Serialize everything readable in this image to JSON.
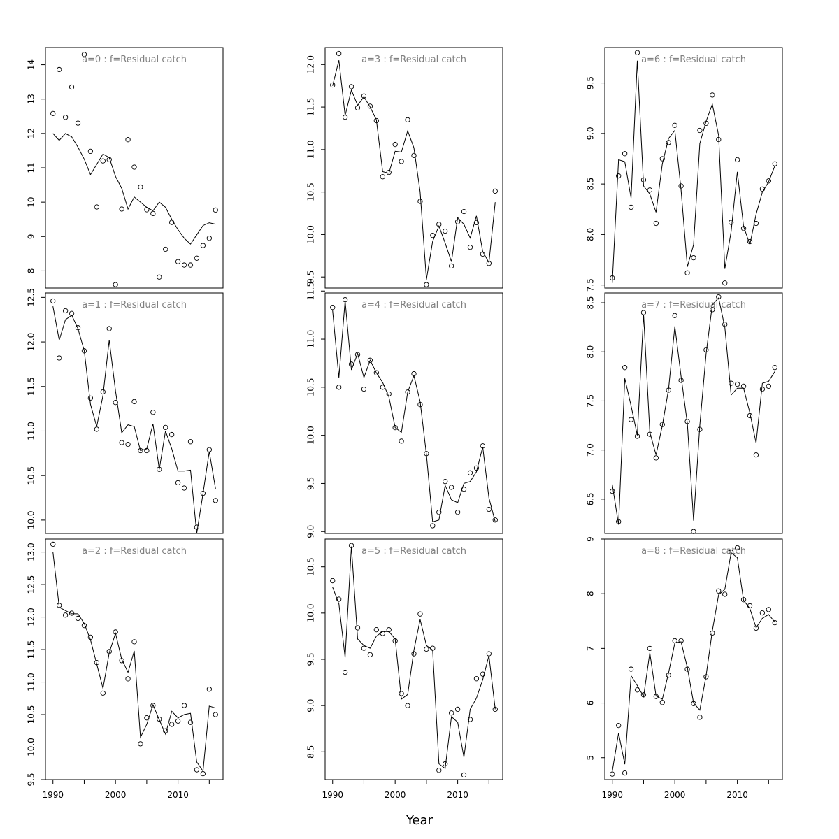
{
  "figure": {
    "xlabel": "Year"
  },
  "chart_data": [
    {
      "type": "scatter",
      "title": "a=0  :  f=Residual catch",
      "x": [
        1990,
        1991,
        1992,
        1993,
        1994,
        1995,
        1996,
        1997,
        1998,
        1999,
        2000,
        2001,
        2002,
        2003,
        2004,
        2005,
        2006,
        2007,
        2008,
        2009,
        2010,
        2011,
        2012,
        2013,
        2014,
        2015,
        2016
      ],
      "observed": [
        12.58,
        13.86,
        12.47,
        13.35,
        12.3,
        14.3,
        11.48,
        9.86,
        11.2,
        11.24,
        7.6,
        9.8,
        11.82,
        11.02,
        10.44,
        9.78,
        9.67,
        7.82,
        8.63,
        9.41,
        8.27,
        8.17,
        8.17,
        8.37,
        8.74,
        8.95,
        9.77
      ],
      "fitted": [
        12.0,
        11.8,
        12.0,
        11.9,
        11.6,
        11.25,
        10.8,
        11.1,
        11.4,
        11.3,
        10.75,
        10.4,
        9.8,
        10.15,
        10.0,
        9.85,
        9.75,
        10.0,
        9.85,
        9.5,
        9.2,
        8.95,
        8.78,
        9.05,
        9.32,
        9.4,
        9.36
      ],
      "yticks": [
        8,
        9,
        10,
        11,
        12,
        13,
        14
      ],
      "ylim": [
        7.5,
        14.5
      ],
      "xticks": [
        1990,
        2000,
        2010
      ]
    },
    {
      "type": "scatter",
      "title": "a=1  :  f=Residual catch",
      "x": [
        1990,
        1991,
        1992,
        1993,
        1994,
        1995,
        1996,
        1997,
        1998,
        1999,
        2000,
        2001,
        2002,
        2003,
        2004,
        2005,
        2006,
        2007,
        2008,
        2009,
        2010,
        2011,
        2012,
        2013,
        2014,
        2015,
        2016
      ],
      "observed": [
        12.46,
        11.82,
        12.35,
        12.32,
        12.16,
        11.9,
        11.37,
        11.02,
        11.44,
        12.15,
        11.32,
        10.87,
        10.85,
        11.33,
        10.78,
        10.78,
        11.21,
        10.57,
        11.04,
        10.96,
        10.42,
        10.36,
        10.88,
        9.92,
        10.3,
        10.79,
        10.22
      ],
      "fitted": [
        12.4,
        12.02,
        12.25,
        12.3,
        12.15,
        11.9,
        11.3,
        11.05,
        11.4,
        12.02,
        11.45,
        10.98,
        11.07,
        11.05,
        10.78,
        10.8,
        11.08,
        10.57,
        11.0,
        10.8,
        10.55,
        10.55,
        10.56,
        9.85,
        10.3,
        10.77,
        10.35
      ],
      "yticks": [
        10.0,
        10.5,
        11.0,
        11.5,
        12.0,
        12.5
      ],
      "ylim": [
        9.85,
        12.55
      ],
      "xticks": [
        1990,
        2000,
        2010
      ]
    },
    {
      "type": "scatter",
      "title": "a=2  :  f=Residual catch",
      "x": [
        1990,
        1991,
        1992,
        1993,
        1994,
        1995,
        1996,
        1997,
        1998,
        1999,
        2000,
        2001,
        2002,
        2003,
        2004,
        2005,
        2006,
        2007,
        2008,
        2009,
        2010,
        2011,
        2012,
        2013,
        2014,
        2015,
        2016
      ],
      "observed": [
        13.12,
        12.18,
        12.03,
        12.06,
        11.98,
        11.87,
        11.69,
        11.3,
        10.83,
        11.47,
        11.77,
        11.33,
        11.05,
        11.62,
        10.05,
        10.45,
        10.64,
        10.43,
        10.25,
        10.35,
        10.4,
        10.64,
        10.38,
        9.65,
        9.59,
        10.89,
        10.5
      ],
      "fitted": [
        13.0,
        12.15,
        12.1,
        12.05,
        12.05,
        11.9,
        11.65,
        11.28,
        10.9,
        11.45,
        11.75,
        11.35,
        11.15,
        11.48,
        10.15,
        10.35,
        10.65,
        10.42,
        10.2,
        10.55,
        10.45,
        10.5,
        10.52,
        9.77,
        9.63,
        10.63,
        10.6
      ],
      "yticks": [
        9.5,
        10.0,
        10.5,
        11.0,
        11.5,
        12.0,
        12.5,
        13.0
      ],
      "ylim": [
        9.5,
        13.2
      ],
      "xticks": [
        1990,
        2000,
        2010
      ]
    },
    {
      "type": "scatter",
      "title": "a=3  :  f=Residual catch",
      "x": [
        1990,
        1991,
        1992,
        1993,
        1994,
        1995,
        1996,
        1997,
        1998,
        1999,
        2000,
        2001,
        2002,
        2003,
        2004,
        2005,
        2006,
        2007,
        2008,
        2009,
        2010,
        2011,
        2012,
        2013,
        2014,
        2015,
        2016
      ],
      "observed": [
        11.76,
        12.13,
        11.38,
        11.74,
        11.49,
        11.63,
        11.51,
        11.34,
        10.68,
        10.73,
        11.06,
        10.86,
        11.35,
        10.93,
        10.39,
        9.41,
        9.99,
        10.12,
        10.04,
        9.63,
        10.15,
        10.27,
        9.85,
        10.14,
        9.77,
        9.66,
        10.51
      ],
      "fitted": [
        11.75,
        12.05,
        11.4,
        11.7,
        11.52,
        11.62,
        11.5,
        11.35,
        10.74,
        10.72,
        10.98,
        10.97,
        11.22,
        11.02,
        10.5,
        9.47,
        9.92,
        10.1,
        9.9,
        9.68,
        10.2,
        10.12,
        9.96,
        10.22,
        9.8,
        9.67,
        10.38
      ],
      "yticks": [
        9.5,
        10.0,
        10.5,
        11.0,
        11.5,
        12.0
      ],
      "ylim": [
        9.37,
        12.2
      ],
      "xticks": [
        1990,
        2000,
        2010
      ]
    },
    {
      "type": "scatter",
      "title": "a=4  :  f=Residual catch",
      "x": [
        1990,
        1991,
        1992,
        1993,
        1994,
        1995,
        1996,
        1997,
        1998,
        1999,
        2000,
        2001,
        2002,
        2003,
        2004,
        2005,
        2006,
        2007,
        2008,
        2009,
        2010,
        2011,
        2012,
        2013,
        2014,
        2015,
        2016
      ],
      "observed": [
        11.33,
        10.5,
        11.41,
        10.74,
        10.84,
        10.48,
        10.78,
        10.65,
        10.5,
        10.43,
        10.08,
        9.94,
        10.45,
        10.64,
        10.32,
        9.81,
        9.06,
        9.2,
        9.52,
        9.46,
        9.2,
        9.44,
        9.61,
        9.66,
        9.89,
        9.23,
        9.12
      ],
      "fitted": [
        11.3,
        10.6,
        11.4,
        10.68,
        10.85,
        10.6,
        10.78,
        10.65,
        10.55,
        10.4,
        10.08,
        10.03,
        10.45,
        10.62,
        10.35,
        9.8,
        9.1,
        9.12,
        9.48,
        9.33,
        9.3,
        9.5,
        9.52,
        9.62,
        9.88,
        9.35,
        9.1
      ],
      "yticks": [
        9.0,
        9.5,
        10.0,
        10.5,
        11.0,
        11.5
      ],
      "ylim": [
        8.98,
        11.48
      ],
      "xticks": [
        1990,
        2000,
        2010
      ]
    },
    {
      "type": "scatter",
      "title": "a=5  :  f=Residual catch",
      "x": [
        1990,
        1991,
        1992,
        1993,
        1994,
        1995,
        1996,
        1997,
        1998,
        1999,
        2000,
        2001,
        2002,
        2003,
        2004,
        2005,
        2006,
        2007,
        2008,
        2009,
        2010,
        2011,
        2012,
        2013,
        2014,
        2015,
        2016
      ],
      "observed": [
        10.35,
        10.15,
        9.36,
        10.73,
        9.84,
        9.62,
        9.55,
        9.82,
        9.78,
        9.82,
        9.7,
        9.13,
        9.0,
        9.56,
        9.99,
        9.61,
        9.62,
        8.3,
        8.37,
        8.92,
        8.96,
        8.25,
        8.85,
        9.29,
        9.34,
        9.56,
        8.96
      ],
      "fitted": [
        10.28,
        10.1,
        9.52,
        10.72,
        9.72,
        9.65,
        9.62,
        9.75,
        9.8,
        9.8,
        9.72,
        9.07,
        9.12,
        9.6,
        9.93,
        9.65,
        9.6,
        8.37,
        8.32,
        8.88,
        8.82,
        8.44,
        8.96,
        9.08,
        9.28,
        9.54,
        8.96
      ],
      "yticks": [
        8.5,
        9.0,
        9.5,
        10.0,
        10.5
      ],
      "ylim": [
        8.2,
        10.8
      ],
      "xticks": [
        1990,
        2000,
        2010
      ]
    },
    {
      "type": "scatter",
      "title": "a=6  :  f=Residual catch",
      "x": [
        1990,
        1991,
        1992,
        1993,
        1994,
        1995,
        1996,
        1997,
        1998,
        1999,
        2000,
        2001,
        2002,
        2003,
        2004,
        2005,
        2006,
        2007,
        2008,
        2009,
        2010,
        2011,
        2012,
        2013,
        2014,
        2015,
        2016
      ],
      "observed": [
        7.57,
        8.58,
        8.8,
        8.27,
        9.8,
        8.54,
        8.44,
        8.11,
        8.75,
        8.91,
        9.08,
        8.48,
        7.62,
        7.77,
        9.03,
        9.1,
        9.38,
        8.94,
        7.52,
        8.12,
        8.74,
        8.06,
        7.93,
        8.11,
        8.45,
        8.53,
        8.7
      ],
      "fitted": [
        7.52,
        8.74,
        8.72,
        8.36,
        9.72,
        8.48,
        8.4,
        8.22,
        8.7,
        8.95,
        9.03,
        8.44,
        7.68,
        7.9,
        8.9,
        9.12,
        9.29,
        8.98,
        7.66,
        8.03,
        8.62,
        8.08,
        7.9,
        8.2,
        8.42,
        8.52,
        8.68
      ],
      "yticks": [
        7.5,
        8.0,
        8.5,
        9.0,
        9.5
      ],
      "ylim": [
        7.47,
        9.85
      ],
      "xticks": [
        1990,
        2000,
        2010
      ]
    },
    {
      "type": "scatter",
      "title": "a=7  :  f=Residual catch",
      "x": [
        1990,
        1991,
        1992,
        1993,
        1994,
        1995,
        1996,
        1997,
        1998,
        1999,
        2000,
        2001,
        2002,
        2003,
        2004,
        2005,
        2006,
        2007,
        2008,
        2009,
        2010,
        2011,
        2012,
        2013,
        2014,
        2015,
        2016
      ],
      "observed": [
        6.58,
        6.27,
        7.84,
        7.31,
        7.14,
        8.4,
        7.16,
        6.92,
        7.26,
        7.61,
        8.37,
        7.71,
        7.29,
        6.17,
        7.21,
        8.02,
        8.43,
        8.56,
        8.28,
        7.68,
        7.67,
        7.65,
        7.35,
        6.95,
        7.62,
        7.65,
        7.84
      ],
      "fitted": [
        6.65,
        6.24,
        7.73,
        7.45,
        7.15,
        8.38,
        7.18,
        6.95,
        7.25,
        7.62,
        8.26,
        7.75,
        7.27,
        6.28,
        7.25,
        7.98,
        8.48,
        8.55,
        8.25,
        7.56,
        7.63,
        7.63,
        7.38,
        7.07,
        7.68,
        7.7,
        7.8
      ],
      "yticks": [
        6.5,
        7.0,
        7.5,
        8.0,
        8.5
      ],
      "ylim": [
        6.15,
        8.6
      ],
      "xticks": [
        1990,
        2000,
        2010
      ]
    },
    {
      "type": "scatter",
      "title": "a=8  :  f=Residual catch",
      "x": [
        1990,
        1991,
        1992,
        1993,
        1994,
        1995,
        1996,
        1997,
        1998,
        1999,
        2000,
        2001,
        2002,
        2003,
        2004,
        2005,
        2006,
        2007,
        2008,
        2009,
        2010,
        2011,
        2012,
        2013,
        2014,
        2015,
        2016
      ],
      "observed": [
        4.7,
        5.59,
        4.72,
        6.62,
        6.24,
        6.15,
        7.0,
        6.12,
        6.01,
        6.51,
        7.14,
        7.14,
        6.62,
        5.99,
        5.74,
        6.48,
        7.28,
        8.05,
        7.99,
        8.76,
        8.84,
        7.89,
        7.78,
        7.37,
        7.65,
        7.71,
        7.47
      ],
      "fitted": [
        4.75,
        5.45,
        4.88,
        6.5,
        6.32,
        6.12,
        6.92,
        6.13,
        6.07,
        6.55,
        7.1,
        7.12,
        6.65,
        6.0,
        5.87,
        6.5,
        7.32,
        7.98,
        8.08,
        8.75,
        8.66,
        7.88,
        7.73,
        7.38,
        7.55,
        7.62,
        7.48
      ],
      "yticks": [
        5,
        6,
        7,
        8,
        9
      ],
      "ylim": [
        4.6,
        9.0
      ],
      "xticks": [
        1990,
        2000,
        2010
      ]
    }
  ]
}
